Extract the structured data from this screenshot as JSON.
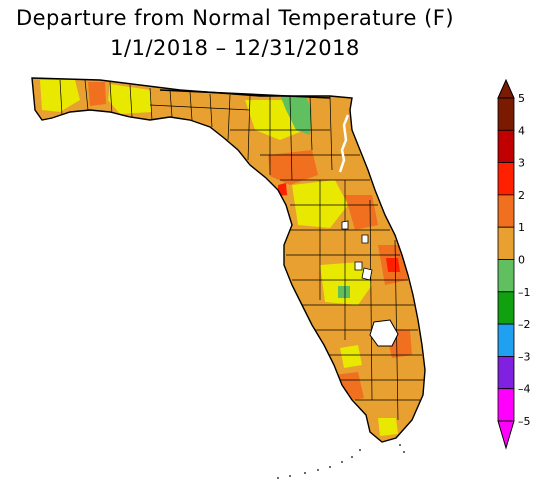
{
  "title": {
    "line1": "Departure from Normal Temperature (F)",
    "line2": "1/1/2018 – 12/31/2018"
  },
  "legend": {
    "ticks": [
      "5",
      "4",
      "3",
      "2",
      "1",
      "0",
      "–1",
      "–2",
      "–3",
      "–4",
      "–5"
    ],
    "colors": [
      "#7a1a00",
      "#c00000",
      "#ff2000",
      "#f07020",
      "#e8a030",
      "#e8e800",
      "#60c060",
      "#10a010",
      "#20a0f0",
      "#8020e0",
      "#ff00ff"
    ]
  },
  "map": {
    "region": "Florida",
    "palette": {
      "orange_2_to_3": "#f07020",
      "amber_1_to_2": "#e8a030",
      "yellow_0_to_1": "#e8e800",
      "green_minus1_to_0": "#60c060",
      "red_3_to_4": "#ff2000",
      "water": "#ffffff",
      "boundary": "#000000"
    }
  }
}
